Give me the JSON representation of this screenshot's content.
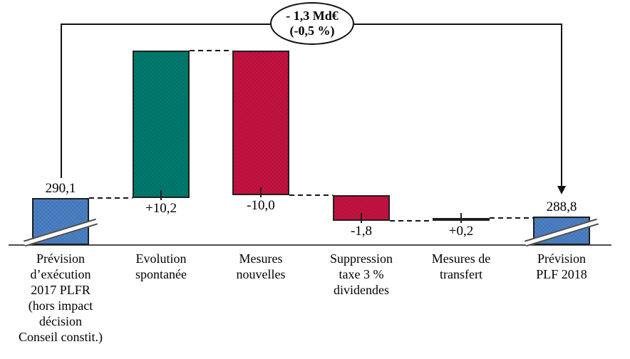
{
  "chart_data": {
    "type": "bar",
    "subtype": "waterfall",
    "title": "",
    "unit": "Md€",
    "annotation": {
      "line1": "- 1,3 Md€",
      "line2": "(-0,5 %)"
    },
    "legend": "none",
    "grid": "off",
    "value_axis": "hidden, broken near zero (break marks on first and last bars)",
    "colors": {
      "start_end": "#4a80c4",
      "increase": "#007a6e",
      "decrease": "#c41240",
      "bar_border": "#1f1f1f",
      "line": "#111111"
    },
    "bars": [
      {
        "id": "prevision-2017-plfr",
        "category_lines": [
          "Prévision",
          "d’exécution",
          "2017 PLFR",
          "(hors impact",
          "décision",
          "Conseil constit.)"
        ],
        "kind": "total",
        "value": 290.1,
        "value_label": "290,1",
        "axis_break": true
      },
      {
        "id": "evolution-spontanee",
        "category_lines": [
          "Evolution",
          "spontanée"
        ],
        "kind": "delta",
        "value": 10.2,
        "value_label": "+10,2",
        "axis_break": false
      },
      {
        "id": "mesures-nouvelles",
        "category_lines": [
          "Mesures",
          "nouvelles"
        ],
        "kind": "delta",
        "value": -10.0,
        "value_label": "-10,0",
        "axis_break": false
      },
      {
        "id": "suppression-taxe-dividendes",
        "category_lines": [
          "Suppression",
          "taxe 3 %",
          "dividendes"
        ],
        "kind": "delta",
        "value": -1.8,
        "value_label": "-1,8",
        "axis_break": false
      },
      {
        "id": "mesures-de-transfert",
        "category_lines": [
          "Mesures de",
          "transfert"
        ],
        "kind": "delta",
        "value": 0.2,
        "value_label": "+0,2",
        "axis_break": false
      },
      {
        "id": "prevision-plf-2018",
        "category_lines": [
          "Prévision",
          "PLF 2018"
        ],
        "kind": "total",
        "value": 288.8,
        "value_label": "288,8",
        "axis_break": true
      }
    ]
  }
}
